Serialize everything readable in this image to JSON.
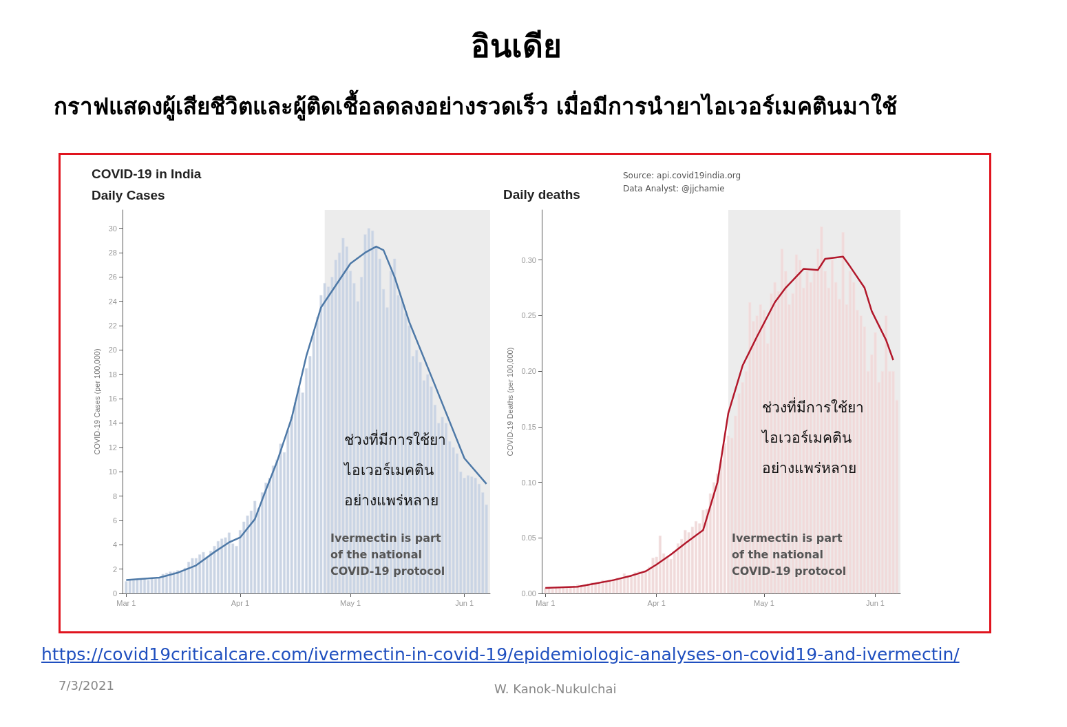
{
  "chart_data": [
    {
      "type": "other",
      "title": "อินเดีย",
      "subtitle": "กราฟแสดงผู้เสียชีวิตและผู้ติดเชื้อลดลงอย่างรวดเร็ว เมื่อมีการนำยาไอเวอร์เมคตินมาใช้",
      "annotations": [
        "https://covid19criticalcare.com/ivermectin-in-covid-19/epidemiologic-analyses-on-covid19-and-ivermectin/",
        "7/3/2021",
        "W. Kanok-Nukulchai"
      ]
    },
    {
      "type": "bar",
      "title": "COVID-19 in India",
      "subtitle": "Daily Cases",
      "ylabel": "COVID-19 Cases (per 100,000)",
      "marker": "none",
      "x": [
        "--03-01",
        "--03-02",
        "--03-03",
        "--03-04",
        "--03-05",
        "--03-06",
        "--03-07",
        "--03-08",
        "--03-09",
        "--03-10",
        "--03-11",
        "--03-12",
        "--03-13",
        "--03-14",
        "--03-15",
        "--03-16",
        "--03-17",
        "--03-18",
        "--03-19",
        "--03-20",
        "--03-21",
        "--03-22",
        "--03-23",
        "--03-24",
        "--03-25",
        "--03-26",
        "--03-27",
        "--03-28",
        "--03-29",
        "--03-30",
        "--03-31",
        "--04-01",
        "--04-02",
        "--04-03",
        "--04-04",
        "--04-05",
        "--04-06",
        "--04-07",
        "--04-08",
        "--04-09",
        "--04-10",
        "--04-11",
        "--04-12",
        "--04-13",
        "--04-14",
        "--04-15",
        "--04-16",
        "--04-17",
        "--04-18",
        "--04-19",
        "--04-20",
        "--04-21",
        "--04-22",
        "--04-23",
        "--04-24",
        "--04-25",
        "--04-26",
        "--04-27",
        "--04-28",
        "--04-29",
        "--04-30",
        "--05-01",
        "--05-02",
        "--05-03",
        "--05-04",
        "--05-05",
        "--05-06",
        "--05-07",
        "--05-08",
        "--05-09",
        "--05-10",
        "--05-11",
        "--05-12",
        "--05-13",
        "--05-14",
        "--05-15",
        "--05-16",
        "--05-17",
        "--05-18",
        "--05-19",
        "--05-20",
        "--05-21",
        "--05-22",
        "--05-23",
        "--05-24",
        "--05-25",
        "--05-26",
        "--05-27",
        "--05-28",
        "--05-29",
        "--05-30",
        "--05-31",
        "--06-01",
        "--06-02",
        "--06-03",
        "--06-04",
        "--06-05",
        "--06-06",
        "--06-07"
      ],
      "series": [
        {
          "type": "bar",
          "color": "#c9d4e4",
          "values": [
            1.0,
            1.1,
            1.1,
            1.2,
            1.2,
            1.2,
            1.1,
            1.3,
            1.2,
            1.3,
            1.6,
            1.7,
            1.8,
            1.8,
            1.9,
            1.9,
            2.1,
            2.6,
            2.9,
            2.9,
            3.2,
            3.4,
            3.0,
            3.5,
            3.9,
            4.3,
            4.5,
            4.6,
            5.0,
            4.1,
            3.9,
            5.2,
            5.9,
            6.4,
            6.8,
            7.6,
            7.0,
            8.3,
            9.1,
            9.5,
            10.5,
            11.0,
            12.3,
            11.6,
            13.4,
            14.5,
            15.7,
            16.9,
            16.5,
            18.5,
            19.5,
            21.5,
            22.7,
            24.5,
            25.5,
            25.2,
            26.0,
            27.4,
            28.0,
            29.2,
            28.5,
            26.5,
            25.5,
            24.0,
            26.0,
            29.5,
            30.0,
            29.8,
            28.5,
            27.5,
            25.0,
            23.5,
            26.5,
            27.5,
            24.5,
            24.0,
            23.0,
            22.0,
            19.5,
            20.0,
            19.0,
            17.5,
            18.0,
            17.0,
            15.5,
            14.0,
            14.5,
            14.0,
            12.5,
            12.0,
            11.5,
            10.0,
            9.5,
            9.7,
            9.6,
            9.5,
            9.0,
            8.3,
            7.3
          ]
        },
        {
          "type": "line",
          "color": "#4e79a7",
          "x": [
            "--03-01",
            "--03-10",
            "--03-15",
            "--03-20",
            "--03-25",
            "--03-29",
            "--04-01",
            "--04-05",
            "--04-08",
            "--04-11",
            "--04-15",
            "--04-19",
            "--04-23",
            "--05-01",
            "--05-05",
            "--05-08",
            "--05-10",
            "--05-13",
            "--05-17",
            "--05-24",
            "--06-01",
            "--06-07"
          ],
          "values": [
            1.1,
            1.3,
            1.7,
            2.3,
            3.4,
            4.2,
            4.6,
            6.1,
            8.5,
            10.8,
            14.4,
            19.5,
            23.5,
            27.1,
            28.0,
            28.5,
            28.2,
            26.0,
            22.3,
            17.1,
            11.1,
            9.0
          ]
        }
      ],
      "xlim": [
        "--02-28",
        "--06-08"
      ],
      "xticks": [
        {
          "value": "--03-01",
          "label": "Mar 1"
        },
        {
          "value": "--04-01",
          "label": "Apr 1"
        },
        {
          "value": "--05-01",
          "label": "May 1"
        },
        {
          "value": "--06-01",
          "label": "Jun 1"
        }
      ],
      "ylim": [
        0,
        31.5
      ],
      "yticks": [
        0,
        2,
        4,
        6,
        8,
        10,
        12,
        14,
        16,
        18,
        20,
        22,
        24,
        26,
        28,
        30
      ],
      "bands": [
        {
          "axis": "x",
          "from": "--04-24",
          "to": "--06-08",
          "color": "#ececec"
        }
      ],
      "annotations": [
        "ช่วงที่มีการใช้ยา\nไอเวอร์เมคติน\nอย่างแพร่หลาย",
        "Ivermectin is part\nof the national\nCOVID-19 protocol"
      ]
    },
    {
      "type": "bar",
      "title": "Daily deaths",
      "ylabel": "COVID-19 Deaths (per 100,000)",
      "marker": "none",
      "x": [
        "--03-01",
        "--03-02",
        "--03-03",
        "--03-04",
        "--03-05",
        "--03-06",
        "--03-07",
        "--03-08",
        "--03-09",
        "--03-10",
        "--03-11",
        "--03-12",
        "--03-13",
        "--03-14",
        "--03-15",
        "--03-16",
        "--03-17",
        "--03-18",
        "--03-19",
        "--03-20",
        "--03-21",
        "--03-22",
        "--03-23",
        "--03-24",
        "--03-25",
        "--03-26",
        "--03-27",
        "--03-28",
        "--03-29",
        "--03-30",
        "--03-31",
        "--04-01",
        "--04-02",
        "--04-03",
        "--04-04",
        "--04-05",
        "--04-06",
        "--04-07",
        "--04-08",
        "--04-09",
        "--04-10",
        "--04-11",
        "--04-12",
        "--04-13",
        "--04-14",
        "--04-15",
        "--04-16",
        "--04-17",
        "--04-18",
        "--04-19",
        "--04-20",
        "--04-21",
        "--04-22",
        "--04-23",
        "--04-24",
        "--04-25",
        "--04-26",
        "--04-27",
        "--04-28",
        "--04-29",
        "--04-30",
        "--05-01",
        "--05-02",
        "--05-03",
        "--05-04",
        "--05-05",
        "--05-06",
        "--05-07",
        "--05-08",
        "--05-09",
        "--05-10",
        "--05-11",
        "--05-12",
        "--05-13",
        "--05-14",
        "--05-15",
        "--05-16",
        "--05-17",
        "--05-18",
        "--05-19",
        "--05-20",
        "--05-21",
        "--05-22",
        "--05-23",
        "--05-24",
        "--05-25",
        "--05-26",
        "--05-27",
        "--05-28",
        "--05-29",
        "--05-30",
        "--05-31",
        "--06-01",
        "--06-02",
        "--06-03",
        "--06-04",
        "--06-05",
        "--06-06",
        "--06-07"
      ],
      "series": [
        {
          "type": "bar",
          "color": "#f0dada",
          "values": [
            0.005,
            0.005,
            0.004,
            0.005,
            0.005,
            0.006,
            0.005,
            0.006,
            0.007,
            0.008,
            0.007,
            0.008,
            0.009,
            0.01,
            0.009,
            0.01,
            0.012,
            0.011,
            0.012,
            0.013,
            0.014,
            0.013,
            0.018,
            0.016,
            0.017,
            0.019,
            0.02,
            0.018,
            0.02,
            0.024,
            0.032,
            0.033,
            0.052,
            0.036,
            0.033,
            0.031,
            0.038,
            0.045,
            0.049,
            0.057,
            0.055,
            0.06,
            0.065,
            0.063,
            0.075,
            0.076,
            0.09,
            0.1,
            0.108,
            0.12,
            0.135,
            0.142,
            0.14,
            0.16,
            0.18,
            0.19,
            0.2,
            0.262,
            0.245,
            0.25,
            0.26,
            0.255,
            0.225,
            0.27,
            0.28,
            0.272,
            0.31,
            0.29,
            0.26,
            0.27,
            0.305,
            0.3,
            0.275,
            0.29,
            0.28,
            0.29,
            0.31,
            0.33,
            0.29,
            0.275,
            0.3,
            0.28,
            0.265,
            0.325,
            0.26,
            0.29,
            0.28,
            0.255,
            0.25,
            0.24,
            0.2,
            0.215,
            0.235,
            0.19,
            0.2,
            0.25,
            0.2,
            0.2,
            0.174
          ]
        },
        {
          "type": "line",
          "color": "#b2182b",
          "x": [
            "--03-01",
            "--03-10",
            "--03-15",
            "--03-20",
            "--03-25",
            "--03-29",
            "--04-01",
            "--04-05",
            "--04-09",
            "--04-14",
            "--04-18",
            "--04-21",
            "--04-25",
            "--04-29",
            "--05-04",
            "--05-07",
            "--05-12",
            "--05-16",
            "--05-18",
            "--05-23",
            "--05-25",
            "--05-29",
            "--05-31",
            "--06-04",
            "--06-06"
          ],
          "values": [
            0.005,
            0.006,
            0.009,
            0.012,
            0.016,
            0.02,
            0.026,
            0.035,
            0.045,
            0.057,
            0.1,
            0.162,
            0.205,
            0.231,
            0.262,
            0.275,
            0.292,
            0.291,
            0.301,
            0.303,
            0.294,
            0.275,
            0.254,
            0.228,
            0.21
          ]
        }
      ],
      "xlim": [
        "--02-28",
        "--06-08"
      ],
      "xticks": [
        {
          "value": "--03-01",
          "label": "Mar 1"
        },
        {
          "value": "--04-01",
          "label": "Apr 1"
        },
        {
          "value": "--05-01",
          "label": "May 1"
        },
        {
          "value": "--06-01",
          "label": "Jun 1"
        }
      ],
      "ylim": [
        0,
        0.345
      ],
      "yticks": [
        {
          "value": 0,
          "label": "0.00"
        },
        {
          "value": 0.05,
          "label": "0.05"
        },
        {
          "value": 0.1,
          "label": "0.10"
        },
        {
          "value": 0.15,
          "label": "0.15"
        },
        {
          "value": 0.2,
          "label": "0.20"
        },
        {
          "value": 0.25,
          "label": "0.25"
        },
        {
          "value": 0.3,
          "label": "0.30"
        }
      ],
      "bands": [
        {
          "axis": "x",
          "from": "--04-21",
          "to": "--06-08",
          "color": "#ececec"
        }
      ],
      "annotations": [
        "ช่วงที่มีการใช้ยา\nไอเวอร์เมคติน\nอย่างแพร่หลาย",
        "Ivermectin is part\nof the national\nCOVID-19 protocol",
        "Source: api.covid19india.org",
        "Data Analyst: @jjchamie"
      ]
    }
  ]
}
